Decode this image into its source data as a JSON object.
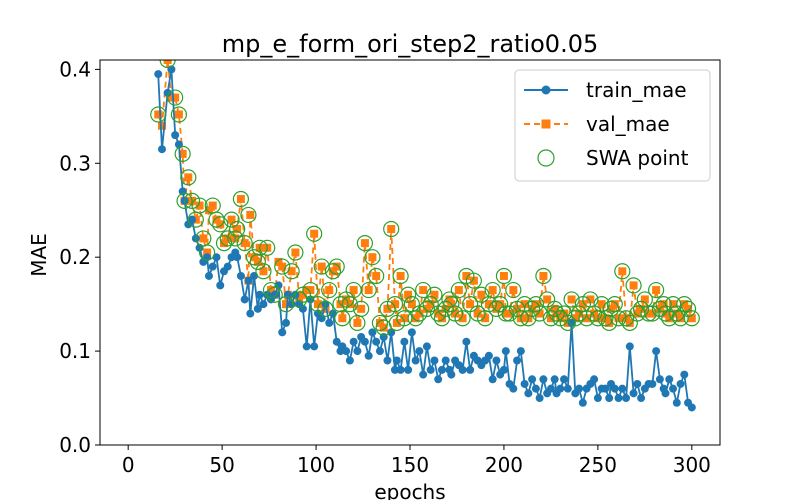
{
  "chart_data": {
    "type": "line",
    "title": "mp_e_form_ori_step2_ratio0.05",
    "xlabel": "epochs",
    "ylabel": "MAE",
    "xlim": [
      -15,
      315
    ],
    "ylim": [
      0.0,
      0.41
    ],
    "xticks": [
      0,
      50,
      100,
      150,
      200,
      250,
      300
    ],
    "yticks": [
      0.0,
      0.1,
      0.2,
      0.3,
      0.4
    ],
    "xtick_labels": [
      "0",
      "50",
      "100",
      "150",
      "200",
      "250",
      "300"
    ],
    "ytick_labels": [
      "0.0",
      "0.1",
      "0.2",
      "0.3",
      "0.4"
    ],
    "grid": false,
    "legend_position": "top-right",
    "colors": {
      "train": "#1f77b4",
      "val": "#ff7f0e",
      "swa": "#2ca02c"
    },
    "series": [
      {
        "name": "train_mae",
        "style": "line-circle",
        "x": [
          16,
          18,
          21,
          23,
          25,
          27,
          29,
          30,
          32,
          34,
          36,
          38,
          40,
          42,
          43,
          45,
          47,
          49,
          51,
          53,
          55,
          57,
          58,
          60,
          62,
          64,
          65,
          67,
          69,
          70,
          72,
          74,
          76,
          78,
          80,
          82,
          84,
          85,
          87,
          89,
          91,
          93,
          95,
          97,
          99,
          101,
          103,
          105,
          107,
          109,
          111,
          113,
          114,
          116,
          118,
          120,
          122,
          124,
          126,
          128,
          130,
          132,
          134,
          136,
          138,
          140,
          142,
          143,
          145,
          147,
          149,
          151,
          153,
          155,
          157,
          159,
          161,
          163,
          165,
          167,
          169,
          171,
          172,
          174,
          176,
          178,
          180,
          182,
          184,
          186,
          188,
          190,
          192,
          194,
          196,
          198,
          200,
          201,
          203,
          205,
          207,
          209,
          211,
          213,
          215,
          217,
          219,
          221,
          223,
          225,
          227,
          228,
          230,
          232,
          234,
          236,
          238,
          240,
          242,
          244,
          246,
          248,
          250,
          252,
          254,
          256,
          257,
          259,
          261,
          263,
          265,
          267,
          269,
          271,
          273,
          275,
          277,
          279,
          281,
          283,
          285,
          286,
          288,
          290,
          292,
          294,
          296,
          298,
          300
        ],
        "y": [
          0.395,
          0.315,
          0.375,
          0.4,
          0.33,
          0.32,
          0.27,
          0.26,
          0.235,
          0.24,
          0.22,
          0.21,
          0.195,
          0.2,
          0.18,
          0.19,
          0.2,
          0.17,
          0.185,
          0.19,
          0.2,
          0.205,
          0.2,
          0.18,
          0.155,
          0.175,
          0.14,
          0.18,
          0.145,
          0.16,
          0.15,
          0.16,
          0.155,
          0.16,
          0.17,
          0.12,
          0.13,
          0.16,
          0.15,
          0.16,
          0.15,
          0.145,
          0.105,
          0.155,
          0.105,
          0.14,
          0.135,
          0.15,
          0.13,
          0.14,
          0.11,
          0.1,
          0.105,
          0.1,
          0.09,
          0.11,
          0.1,
          0.115,
          0.11,
          0.095,
          0.12,
          0.11,
          0.1,
          0.115,
          0.09,
          0.12,
          0.08,
          0.09,
          0.08,
          0.11,
          0.08,
          0.12,
          0.09,
          0.1,
          0.075,
          0.105,
          0.08,
          0.09,
          0.07,
          0.08,
          0.09,
          0.08,
          0.075,
          0.09,
          0.085,
          0.08,
          0.11,
          0.08,
          0.095,
          0.09,
          0.085,
          0.09,
          0.095,
          0.07,
          0.09,
          0.075,
          0.08,
          0.1,
          0.065,
          0.06,
          0.09,
          0.1,
          0.065,
          0.055,
          0.07,
          0.06,
          0.05,
          0.07,
          0.055,
          0.06,
          0.07,
          0.055,
          0.06,
          0.07,
          0.06,
          0.13,
          0.055,
          0.06,
          0.045,
          0.06,
          0.065,
          0.07,
          0.05,
          0.06,
          0.06,
          0.05,
          0.065,
          0.06,
          0.05,
          0.06,
          0.05,
          0.105,
          0.055,
          0.065,
          0.05,
          0.06,
          0.065,
          0.065,
          0.1,
          0.07,
          0.06,
          0.055,
          0.07,
          0.06,
          0.045,
          0.065,
          0.075,
          0.045,
          0.04
        ]
      },
      {
        "name": "val_mae",
        "style": "dashed-square",
        "x": [
          16,
          18,
          21,
          23,
          25,
          27,
          29,
          30,
          32,
          34,
          36,
          38,
          40,
          42,
          43,
          45,
          47,
          49,
          51,
          53,
          55,
          57,
          58,
          60,
          62,
          64,
          65,
          67,
          69,
          70,
          72,
          74,
          76,
          78,
          80,
          82,
          84,
          85,
          87,
          89,
          91,
          93,
          95,
          97,
          99,
          101,
          103,
          105,
          107,
          109,
          111,
          113,
          114,
          116,
          118,
          120,
          122,
          124,
          126,
          128,
          130,
          132,
          134,
          136,
          138,
          140,
          142,
          143,
          145,
          147,
          149,
          151,
          153,
          155,
          157,
          159,
          161,
          163,
          165,
          167,
          169,
          171,
          172,
          174,
          176,
          178,
          180,
          182,
          184,
          186,
          188,
          190,
          192,
          194,
          196,
          198,
          200,
          201,
          203,
          205,
          207,
          209,
          211,
          213,
          215,
          217,
          219,
          221,
          223,
          225,
          227,
          228,
          230,
          232,
          234,
          236,
          238,
          240,
          242,
          244,
          246,
          248,
          250,
          252,
          254,
          256,
          257,
          259,
          261,
          263,
          265,
          267,
          269,
          271,
          273,
          275,
          277,
          279,
          281,
          283,
          285,
          286,
          288,
          290,
          292,
          294,
          296,
          298,
          300
        ],
        "y": [
          0.352,
          0.34,
          0.41,
          0.37,
          0.37,
          0.352,
          0.31,
          0.26,
          0.285,
          0.26,
          0.24,
          0.255,
          0.22,
          0.205,
          0.25,
          0.255,
          0.24,
          0.235,
          0.215,
          0.22,
          0.24,
          0.22,
          0.23,
          0.262,
          0.215,
          0.175,
          0.245,
          0.2,
          0.195,
          0.21,
          0.185,
          0.21,
          0.165,
          0.16,
          0.195,
          0.19,
          0.15,
          0.16,
          0.185,
          0.205,
          0.155,
          0.16,
          0.165,
          0.165,
          0.225,
          0.15,
          0.19,
          0.145,
          0.165,
          0.185,
          0.19,
          0.15,
          0.135,
          0.155,
          0.15,
          0.165,
          0.13,
          0.145,
          0.215,
          0.165,
          0.2,
          0.18,
          0.13,
          0.125,
          0.145,
          0.23,
          0.15,
          0.13,
          0.18,
          0.135,
          0.16,
          0.15,
          0.135,
          0.14,
          0.165,
          0.145,
          0.15,
          0.16,
          0.14,
          0.135,
          0.145,
          0.155,
          0.15,
          0.14,
          0.165,
          0.135,
          0.18,
          0.15,
          0.175,
          0.14,
          0.16,
          0.135,
          0.15,
          0.165,
          0.145,
          0.15,
          0.18,
          0.14,
          0.14,
          0.165,
          0.145,
          0.135,
          0.15,
          0.135,
          0.145,
          0.15,
          0.14,
          0.18,
          0.155,
          0.135,
          0.145,
          0.14,
          0.135,
          0.14,
          0.13,
          0.155,
          0.135,
          0.14,
          0.15,
          0.135,
          0.155,
          0.14,
          0.135,
          0.15,
          0.135,
          0.13,
          0.145,
          0.15,
          0.135,
          0.185,
          0.135,
          0.13,
          0.17,
          0.14,
          0.145,
          0.155,
          0.14,
          0.14,
          0.165,
          0.145,
          0.15,
          0.14,
          0.135,
          0.15,
          0.14,
          0.135,
          0.15,
          0.145,
          0.135
        ]
      },
      {
        "name": "SWA point",
        "style": "hollow-circle-marker",
        "x": [
          16,
          21,
          25,
          27,
          29,
          30,
          32,
          34,
          36,
          38,
          40,
          42,
          45,
          47,
          49,
          51,
          53,
          55,
          57,
          58,
          60,
          62,
          64,
          67,
          69,
          70,
          72,
          74,
          76,
          78,
          82,
          84,
          87,
          89,
          91,
          93,
          97,
          99,
          101,
          103,
          105,
          107,
          109,
          111,
          113,
          114,
          116,
          118,
          120,
          122,
          124,
          126,
          128,
          130,
          132,
          134,
          136,
          138,
          140,
          142,
          143,
          145,
          147,
          149,
          151,
          153,
          155,
          157,
          159,
          161,
          163,
          165,
          167,
          169,
          171,
          172,
          174,
          176,
          178,
          180,
          182,
          184,
          186,
          188,
          190,
          192,
          194,
          196,
          198,
          200,
          201,
          203,
          205,
          207,
          209,
          211,
          213,
          215,
          217,
          219,
          221,
          223,
          225,
          227,
          228,
          230,
          232,
          234,
          236,
          238,
          240,
          242,
          244,
          246,
          248,
          250,
          252,
          254,
          256,
          257,
          259,
          261,
          263,
          265,
          267,
          269,
          271,
          273,
          275,
          277,
          279,
          281,
          283,
          285,
          286,
          288,
          290,
          292,
          294,
          296,
          298,
          300
        ],
        "y": [
          0.352,
          0.41,
          0.37,
          0.352,
          0.31,
          0.26,
          0.285,
          0.26,
          0.24,
          0.255,
          0.22,
          0.205,
          0.255,
          0.24,
          0.235,
          0.215,
          0.22,
          0.24,
          0.22,
          0.23,
          0.262,
          0.215,
          0.245,
          0.2,
          0.195,
          0.21,
          0.185,
          0.21,
          0.165,
          0.16,
          0.19,
          0.15,
          0.185,
          0.205,
          0.155,
          0.16,
          0.165,
          0.225,
          0.15,
          0.19,
          0.145,
          0.165,
          0.185,
          0.19,
          0.15,
          0.135,
          0.155,
          0.15,
          0.165,
          0.13,
          0.145,
          0.215,
          0.165,
          0.2,
          0.18,
          0.13,
          0.125,
          0.145,
          0.23,
          0.15,
          0.13,
          0.18,
          0.135,
          0.16,
          0.15,
          0.135,
          0.14,
          0.165,
          0.145,
          0.15,
          0.16,
          0.14,
          0.135,
          0.145,
          0.155,
          0.15,
          0.14,
          0.165,
          0.135,
          0.18,
          0.15,
          0.175,
          0.14,
          0.16,
          0.135,
          0.15,
          0.165,
          0.145,
          0.15,
          0.18,
          0.14,
          0.14,
          0.165,
          0.145,
          0.135,
          0.15,
          0.135,
          0.145,
          0.15,
          0.14,
          0.18,
          0.155,
          0.135,
          0.145,
          0.14,
          0.135,
          0.14,
          0.13,
          0.155,
          0.135,
          0.14,
          0.15,
          0.135,
          0.155,
          0.14,
          0.135,
          0.15,
          0.135,
          0.13,
          0.145,
          0.15,
          0.135,
          0.185,
          0.135,
          0.13,
          0.17,
          0.14,
          0.145,
          0.155,
          0.14,
          0.14,
          0.165,
          0.145,
          0.15,
          0.14,
          0.135,
          0.15,
          0.14,
          0.135,
          0.15,
          0.145,
          0.135
        ]
      }
    ]
  }
}
